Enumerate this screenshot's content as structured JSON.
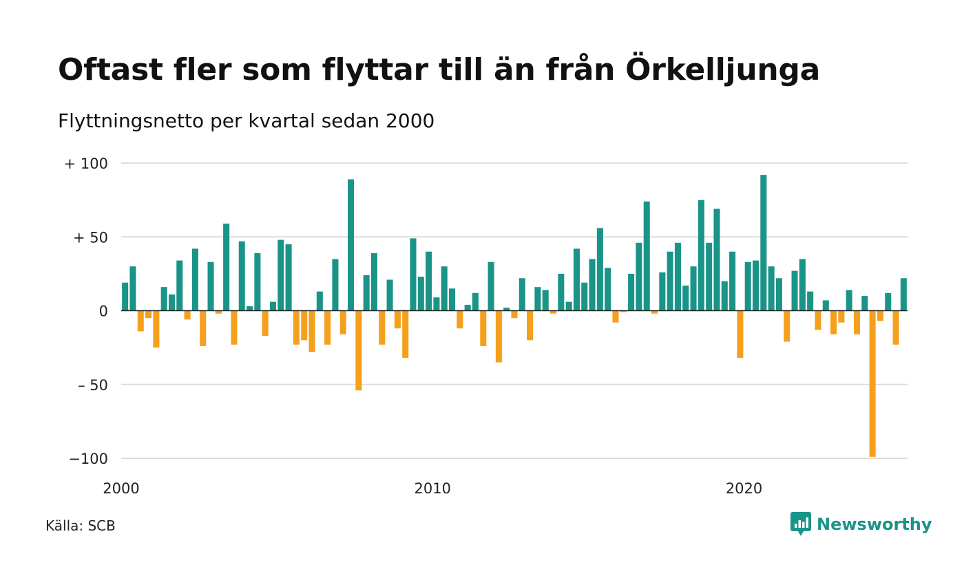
{
  "brand": {
    "name": "Newsworthy",
    "color": "#1a9488"
  },
  "source": "Källa: SCB",
  "colors": {
    "positive": "#1a9488",
    "negative": "#f5a01c",
    "grid": "#dddddd",
    "baseline": "#222222"
  },
  "chart_data": {
    "type": "bar",
    "title": "Oftast fler som flyttar till än från Örkelljunga",
    "subtitle": "Flyttningsnetto per kvartal sedan 2000",
    "xlabel": "",
    "ylabel": "",
    "ylim": [
      -100,
      100
    ],
    "y_ticks": [
      {
        "value": 100,
        "label": "+ 100"
      },
      {
        "value": 50,
        "label": "+  50"
      },
      {
        "value": 0,
        "label": "0"
      },
      {
        "value": -50,
        "label": "– 50"
      },
      {
        "value": -100,
        "label": "−100"
      }
    ],
    "x_ticks": [
      {
        "year": 2000,
        "label": "2000"
      },
      {
        "year": 2010,
        "label": "2010"
      },
      {
        "year": 2020,
        "label": "2020"
      }
    ],
    "grid": true,
    "period": "quarter",
    "start_year": 2000,
    "values": [
      19,
      30,
      -14,
      -5,
      -25,
      16,
      11,
      34,
      -6,
      42,
      -24,
      33,
      -2,
      59,
      -23,
      47,
      3,
      39,
      -17,
      6,
      48,
      45,
      -23,
      -20,
      -28,
      13,
      -23,
      35,
      -16,
      89,
      -54,
      24,
      39,
      -23,
      21,
      -12,
      -32,
      49,
      23,
      40,
      9,
      30,
      15,
      -12,
      4,
      12,
      -24,
      33,
      -35,
      2,
      -5,
      22,
      -20,
      16,
      14,
      -2,
      25,
      6,
      42,
      19,
      35,
      56,
      29,
      -8,
      -1,
      25,
      46,
      74,
      -2,
      26,
      40,
      46,
      17,
      30,
      75,
      46,
      69,
      20,
      40,
      -32,
      33,
      34,
      92,
      30,
      22,
      -21,
      27,
      35,
      13,
      -13,
      7,
      -16,
      -8,
      14,
      -16,
      10,
      -99,
      -7,
      12,
      -23,
      22
    ]
  }
}
